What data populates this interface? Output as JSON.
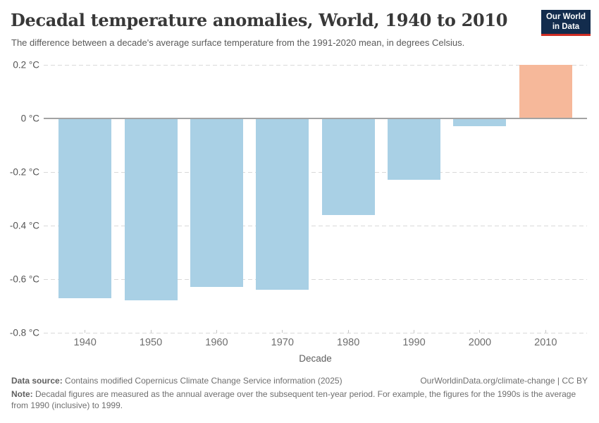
{
  "header": {
    "title": "Decadal temperature anomalies, World, 1940 to 2010",
    "subtitle": "The difference between a decade's average surface temperature from the 1991-2020 mean, in degrees Celsius.",
    "logo": {
      "line1": "Our World",
      "line2": "in Data"
    }
  },
  "chart_data": {
    "type": "bar",
    "title": "Decadal temperature anomalies, World, 1940 to 2010",
    "categories": [
      "1940",
      "1950",
      "1960",
      "1970",
      "1980",
      "1990",
      "2000",
      "2010"
    ],
    "values": [
      -0.67,
      -0.68,
      -0.63,
      -0.64,
      -0.36,
      -0.23,
      -0.03,
      0.2
    ],
    "unit": "°C",
    "xlabel": "Decade",
    "ylabel": "",
    "ylim": [
      -0.8,
      0.2
    ],
    "yticks": [
      0.2,
      0,
      -0.2,
      -0.4,
      -0.6,
      -0.8
    ],
    "ytick_labels": [
      "0.2 °C",
      "0 °C",
      "-0.2 °C",
      "-0.4 °C",
      "-0.6 °C",
      "-0.8 °C"
    ],
    "grid": "horizontal dashed",
    "legend": "none",
    "colors": {
      "negative_bar": "#a9d0e5",
      "positive_bar": "#f6b89a"
    }
  },
  "footer": {
    "data_source_label": "Data source:",
    "data_source_text": " Contains modified Copernicus Climate Change Service information (2025)",
    "link": "OurWorldinData.org/climate-change",
    "license": " | CC BY",
    "note_label": "Note:",
    "note_text": " Decadal figures are measured as the annual average over the subsequent ten-year period. For example, the figures for the 1990s is the average from 1990 (inclusive) to 1999."
  }
}
